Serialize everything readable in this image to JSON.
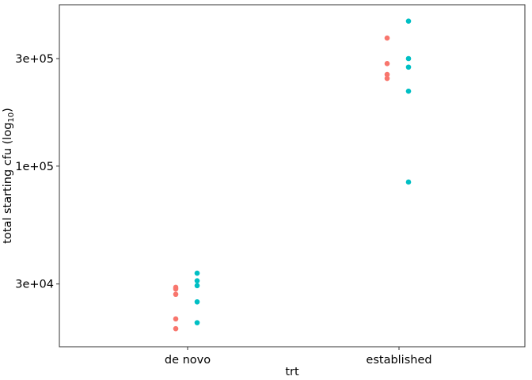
{
  "chart_data": {
    "type": "scatter",
    "xlabel": "trt",
    "ylabel": "total starting cfu (log",
    "ylabel_subscript": "10",
    "ylabel_close": ")",
    "y_scale": "log10",
    "ylim": [
      15800,
      520000
    ],
    "y_ticks": [
      {
        "value": 30000,
        "label": "3e+04"
      },
      {
        "value": 100000,
        "label": "1e+05"
      },
      {
        "value": 300000,
        "label": "3e+05"
      }
    ],
    "categories": [
      "de novo",
      "established"
    ],
    "grid": false,
    "legend": "none",
    "series": [
      {
        "color": "#F8766D",
        "offset": "left",
        "points": [
          {
            "x": "de novo",
            "y": 29000
          },
          {
            "x": "de novo",
            "y": 28500
          },
          {
            "x": "de novo",
            "y": 27000
          },
          {
            "x": "de novo",
            "y": 21000
          },
          {
            "x": "de novo",
            "y": 19000
          },
          {
            "x": "established",
            "y": 370000
          },
          {
            "x": "established",
            "y": 285000
          },
          {
            "x": "established",
            "y": 255000
          },
          {
            "x": "established",
            "y": 245000
          }
        ]
      },
      {
        "color": "#00BFC4",
        "offset": "right",
        "points": [
          {
            "x": "de novo",
            "y": 33500
          },
          {
            "x": "de novo",
            "y": 31000
          },
          {
            "x": "de novo",
            "y": 29500
          },
          {
            "x": "de novo",
            "y": 25000
          },
          {
            "x": "de novo",
            "y": 20200
          },
          {
            "x": "established",
            "y": 440000
          },
          {
            "x": "established",
            "y": 300000
          },
          {
            "x": "established",
            "y": 275000
          },
          {
            "x": "established",
            "y": 215000
          },
          {
            "x": "established",
            "y": 85000
          }
        ]
      }
    ]
  }
}
